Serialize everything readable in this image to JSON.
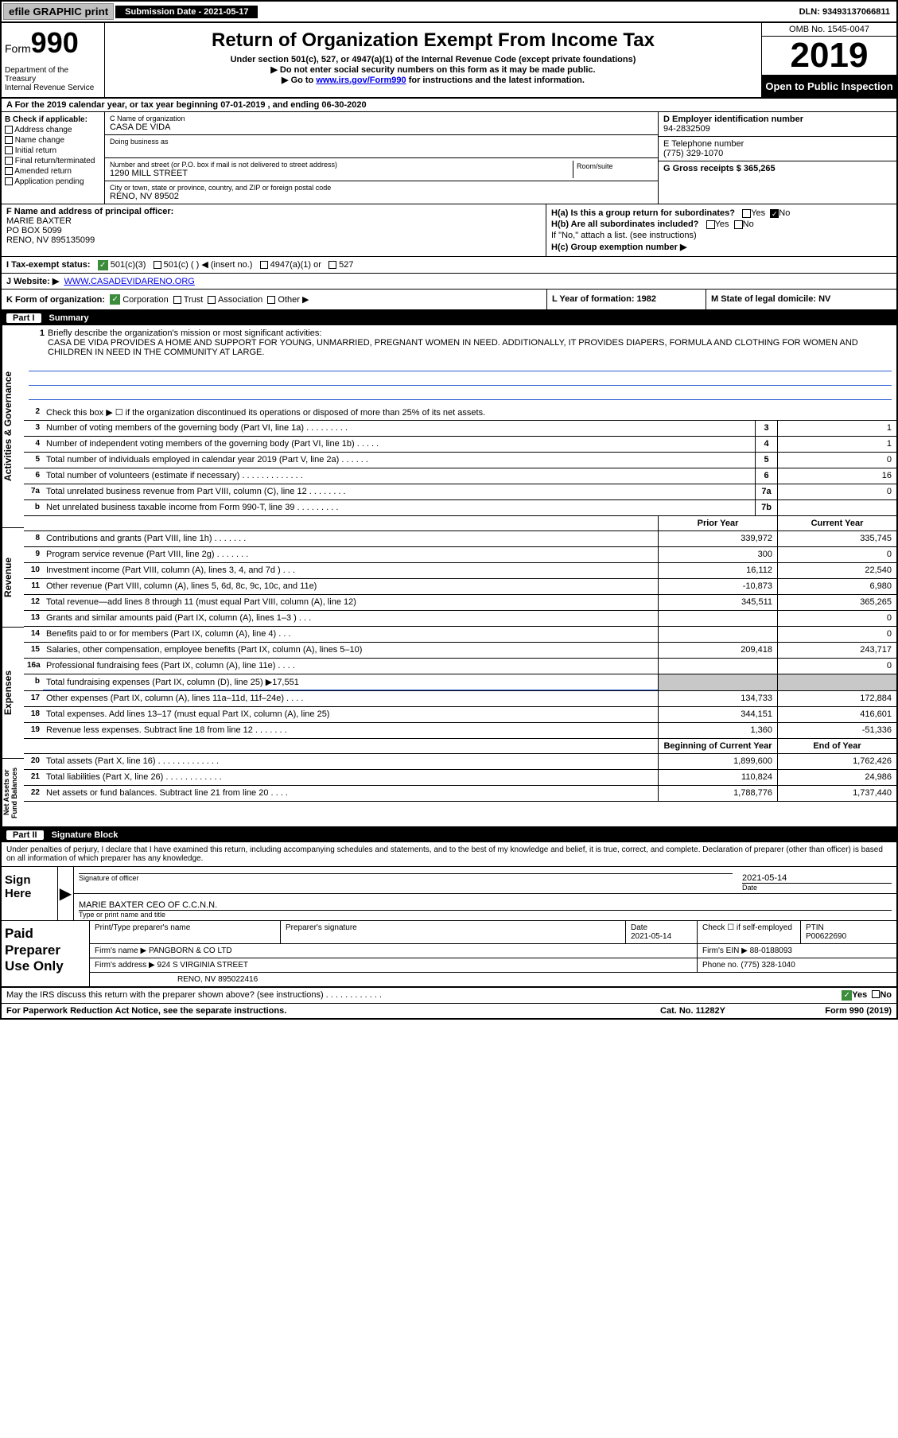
{
  "topbar": {
    "efile": "efile GRAPHIC print",
    "submission_label": "Submission Date - 2021-05-17",
    "dln": "DLN: 93493137066811"
  },
  "header": {
    "form_label": "Form",
    "form_num": "990",
    "dept": "Department of the Treasury\nInternal Revenue Service",
    "title": "Return of Organization Exempt From Income Tax",
    "subtitle": "Under section 501(c), 527, or 4947(a)(1) of the Internal Revenue Code (except private foundations)",
    "note1": "▶ Do not enter social security numbers on this form as it may be made public.",
    "note2_pre": "▶ Go to ",
    "note2_link": "www.irs.gov/Form990",
    "note2_post": " for instructions and the latest information.",
    "omb": "OMB No. 1545-0047",
    "year": "2019",
    "open": "Open to Public Inspection"
  },
  "row_a": "A For the 2019 calendar year, or tax year beginning 07-01-2019   , and ending 06-30-2020",
  "b": {
    "label": "B Check if applicable:",
    "items": [
      "Address change",
      "Name change",
      "Initial return",
      "Final return/terminated",
      "Amended return",
      "Application pending"
    ]
  },
  "c": {
    "name_label": "C Name of organization",
    "name": "CASA DE VIDA",
    "dba_label": "Doing business as",
    "addr_label": "Number and street (or P.O. box if mail is not delivered to street address)",
    "addr": "1290 MILL STREET",
    "room_label": "Room/suite",
    "city_label": "City or town, state or province, country, and ZIP or foreign postal code",
    "city": "RENO, NV  89502"
  },
  "d": {
    "ein_label": "D Employer identification number",
    "ein": "94-2832509",
    "phone_label": "E Telephone number",
    "phone": "(775) 329-1070",
    "gross_label": "G Gross receipts $ 365,265"
  },
  "f": {
    "label": "F  Name and address of principal officer:",
    "name": "MARIE BAXTER",
    "addr1": "PO BOX 5099",
    "addr2": "RENO, NV  895135099"
  },
  "h": {
    "a_label": "H(a)  Is this a group return for subordinates?",
    "b_label": "H(b)  Are all subordinates included?",
    "b_note": "If \"No,\" attach a list. (see instructions)",
    "c_label": "H(c)  Group exemption number ▶",
    "yes": "Yes",
    "no": "No"
  },
  "i": {
    "label": "I  Tax-exempt status:",
    "opts": [
      "501(c)(3)",
      "501(c) (  ) ◀ (insert no.)",
      "4947(a)(1) or",
      "527"
    ]
  },
  "j": {
    "label": "J   Website: ▶",
    "url": "WWW.CASADEVIDARENO.ORG"
  },
  "k": {
    "label": "K Form of organization:",
    "opts": [
      "Corporation",
      "Trust",
      "Association",
      "Other ▶"
    ],
    "l_label": "L Year of formation: 1982",
    "m_label": "M State of legal domicile: NV"
  },
  "part1": {
    "num": "Part I",
    "title": "Summary"
  },
  "mission": {
    "num": "1",
    "label": "Briefly describe the organization's mission or most significant activities:",
    "text": "CASA DE VIDA PROVIDES A HOME AND SUPPORT FOR YOUNG, UNMARRIED, PREGNANT WOMEN IN NEED. ADDITIONALLY, IT PROVIDES DIAPERS, FORMULA AND CLOTHING FOR WOMEN AND CHILDREN IN NEED IN THE COMMUNITY AT LARGE."
  },
  "gov_lines": [
    {
      "n": "2",
      "t": "Check this box ▶ ☐  if the organization discontinued its operations or disposed of more than 25% of its net assets."
    },
    {
      "n": "3",
      "t": "Number of voting members of the governing body (Part VI, line 1a)   .   .   .   .   .   .   .   .   .",
      "box": "3",
      "v": "1"
    },
    {
      "n": "4",
      "t": "Number of independent voting members of the governing body (Part VI, line 1b)   .   .   .   .   .",
      "box": "4",
      "v": "1"
    },
    {
      "n": "5",
      "t": "Total number of individuals employed in calendar year 2019 (Part V, line 2a)   .   .   .   .   .   .",
      "box": "5",
      "v": "0"
    },
    {
      "n": "6",
      "t": "Total number of volunteers (estimate if necessary)   .   .   .   .   .   .   .   .   .   .   .   .   .",
      "box": "6",
      "v": "16"
    },
    {
      "n": "7a",
      "t": "Total unrelated business revenue from Part VIII, column (C), line 12   .   .   .   .   .   .   .   .",
      "box": "7a",
      "v": "0"
    },
    {
      "n": "b",
      "t": "Net unrelated business taxable income from Form 990-T, line 39   .   .   .   .   .   .   .   .   .",
      "box": "7b",
      "v": ""
    }
  ],
  "year_cols": {
    "prior": "Prior Year",
    "current": "Current Year"
  },
  "rev_lines": [
    {
      "n": "8",
      "t": "Contributions and grants (Part VIII, line 1h)   .   .   .   .   .   .   .",
      "p": "339,972",
      "c": "335,745"
    },
    {
      "n": "9",
      "t": "Program service revenue (Part VIII, line 2g)   .   .   .   .   .   .   .",
      "p": "300",
      "c": "0"
    },
    {
      "n": "10",
      "t": "Investment income (Part VIII, column (A), lines 3, 4, and 7d )   .   .   .",
      "p": "16,112",
      "c": "22,540"
    },
    {
      "n": "11",
      "t": "Other revenue (Part VIII, column (A), lines 5, 6d, 8c, 9c, 10c, and 11e)",
      "p": "-10,873",
      "c": "6,980"
    },
    {
      "n": "12",
      "t": "Total revenue—add lines 8 through 11 (must equal Part VIII, column (A), line 12)",
      "p": "345,511",
      "c": "365,265"
    }
  ],
  "exp_lines": [
    {
      "n": "13",
      "t": "Grants and similar amounts paid (Part IX, column (A), lines 1–3 )   .   .   .",
      "p": "",
      "c": "0"
    },
    {
      "n": "14",
      "t": "Benefits paid to or for members (Part IX, column (A), line 4)   .   .   .",
      "p": "",
      "c": "0"
    },
    {
      "n": "15",
      "t": "Salaries, other compensation, employee benefits (Part IX, column (A), lines 5–10)",
      "p": "209,418",
      "c": "243,717"
    },
    {
      "n": "16a",
      "t": "Professional fundraising fees (Part IX, column (A), line 11e)   .   .   .   .",
      "p": "",
      "c": "0"
    },
    {
      "n": "b",
      "t": "Total fundraising expenses (Part IX, column (D), line 25) ▶17,551",
      "gray": true
    },
    {
      "n": "17",
      "t": "Other expenses (Part IX, column (A), lines 11a–11d, 11f–24e)   .   .   .   .",
      "p": "134,733",
      "c": "172,884"
    },
    {
      "n": "18",
      "t": "Total expenses. Add lines 13–17 (must equal Part IX, column (A), line 25)",
      "p": "344,151",
      "c": "416,601"
    },
    {
      "n": "19",
      "t": "Revenue less expenses. Subtract line 18 from line 12   .   .   .   .   .   .   .",
      "p": "1,360",
      "c": "-51,336"
    }
  ],
  "net_cols": {
    "beg": "Beginning of Current Year",
    "end": "End of Year"
  },
  "net_lines": [
    {
      "n": "20",
      "t": "Total assets (Part X, line 16)   .   .   .   .   .   .   .   .   .   .   .   .   .",
      "p": "1,899,600",
      "c": "1,762,426"
    },
    {
      "n": "21",
      "t": "Total liabilities (Part X, line 26)   .   .   .   .   .   .   .   .   .   .   .   .",
      "p": "110,824",
      "c": "24,986"
    },
    {
      "n": "22",
      "t": "Net assets or fund balances. Subtract line 21 from line 20   .   .   .   .",
      "p": "1,788,776",
      "c": "1,737,440"
    }
  ],
  "part2": {
    "num": "Part II",
    "title": "Signature Block"
  },
  "sig_decl": "Under penalties of perjury, I declare that I have examined this return, including accompanying schedules and statements, and to the best of my knowledge and belief, it is true, correct, and complete. Declaration of preparer (other than officer) is based on all information of which preparer has any knowledge.",
  "sign": {
    "here": "Sign Here",
    "sig_label": "Signature of officer",
    "date_label": "Date",
    "date": "2021-05-14",
    "name": "MARIE BAXTER CEO OF C.C.N.N.",
    "name_label": "Type or print name and title"
  },
  "prep": {
    "title": "Paid Preparer Use Only",
    "name_label": "Print/Type preparer's name",
    "sig_label": "Preparer's signature",
    "date_label": "Date",
    "date": "2021-05-14",
    "check_label": "Check ☐  if self-employed",
    "ptin_label": "PTIN",
    "ptin": "P00622690",
    "firm_label": "Firm's name    ▶",
    "firm": "PANGBORN & CO LTD",
    "ein_label": "Firm's EIN ▶",
    "ein": "88-0188093",
    "addr_label": "Firm's address ▶",
    "addr1": "924 S VIRGINIA STREET",
    "addr2": "RENO, NV  895022416",
    "phone_label": "Phone no.",
    "phone": "(775) 328-1040"
  },
  "discuss": "May the IRS discuss this return with the preparer shown above? (see instructions)   .   .   .   .   .   .   .   .   .   .   .   .",
  "footer": {
    "left": "For Paperwork Reduction Act Notice, see the separate instructions.",
    "mid": "Cat. No. 11282Y",
    "right": "Form 990 (2019)"
  },
  "vtabs": {
    "gov": "Activities & Governance",
    "rev": "Revenue",
    "exp": "Expenses",
    "net": "Net Assets or Fund Balances"
  }
}
